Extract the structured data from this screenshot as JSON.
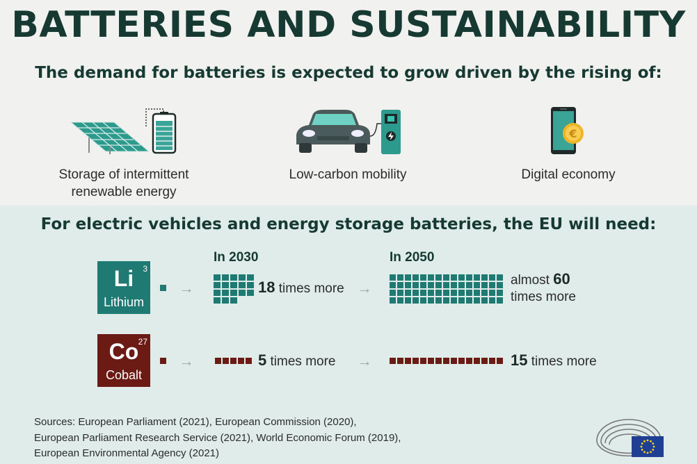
{
  "header": {
    "title": "BATTERIES AND SUSTAINABILITY",
    "subtitle": "The demand for batteries is expected to grow driven by the rising of:"
  },
  "drivers": [
    {
      "label_line1": "Storage of intermittent",
      "label_line2": "renewable energy",
      "icon": "solar-panel-battery-icon"
    },
    {
      "label_line1": "Low-carbon mobility",
      "icon": "electric-car-charger-icon"
    },
    {
      "label_line1": "Digital economy",
      "icon": "smartphone-euro-coin-icon"
    }
  ],
  "needs": {
    "heading": "For electric vehicles and energy storage batteries, the EU will need:",
    "year_2030": "In 2030",
    "year_2050": "In 2050",
    "lithium": {
      "symbol": "Li",
      "number": "3",
      "name": "Lithium",
      "color": "#1e7a72",
      "multiplier_2030": "18",
      "text_2030": "times more",
      "prefix_2050": "almost",
      "multiplier_2050": "60",
      "text_2050": "times more",
      "units_2030": 18,
      "units_2050": 60
    },
    "cobalt": {
      "symbol": "Co",
      "number": "27",
      "name": "Cobalt",
      "color": "#6b1a14",
      "multiplier_2030": "5",
      "text_2030": "times more",
      "multiplier_2050": "15",
      "text_2050": "times more",
      "units_2030": 5,
      "units_2050": 15
    }
  },
  "sources": {
    "line1": "Sources: European Parliament (2021), European Commission (2020),",
    "line2": "European Parliament Research Service (2021), World Economic Forum (2019),",
    "line3": "European Environmental Agency (2021)"
  },
  "logo": {
    "icon": "european-parliament-logo-icon",
    "flag_color": "#1e3f94",
    "star_color": "#ffd617"
  }
}
